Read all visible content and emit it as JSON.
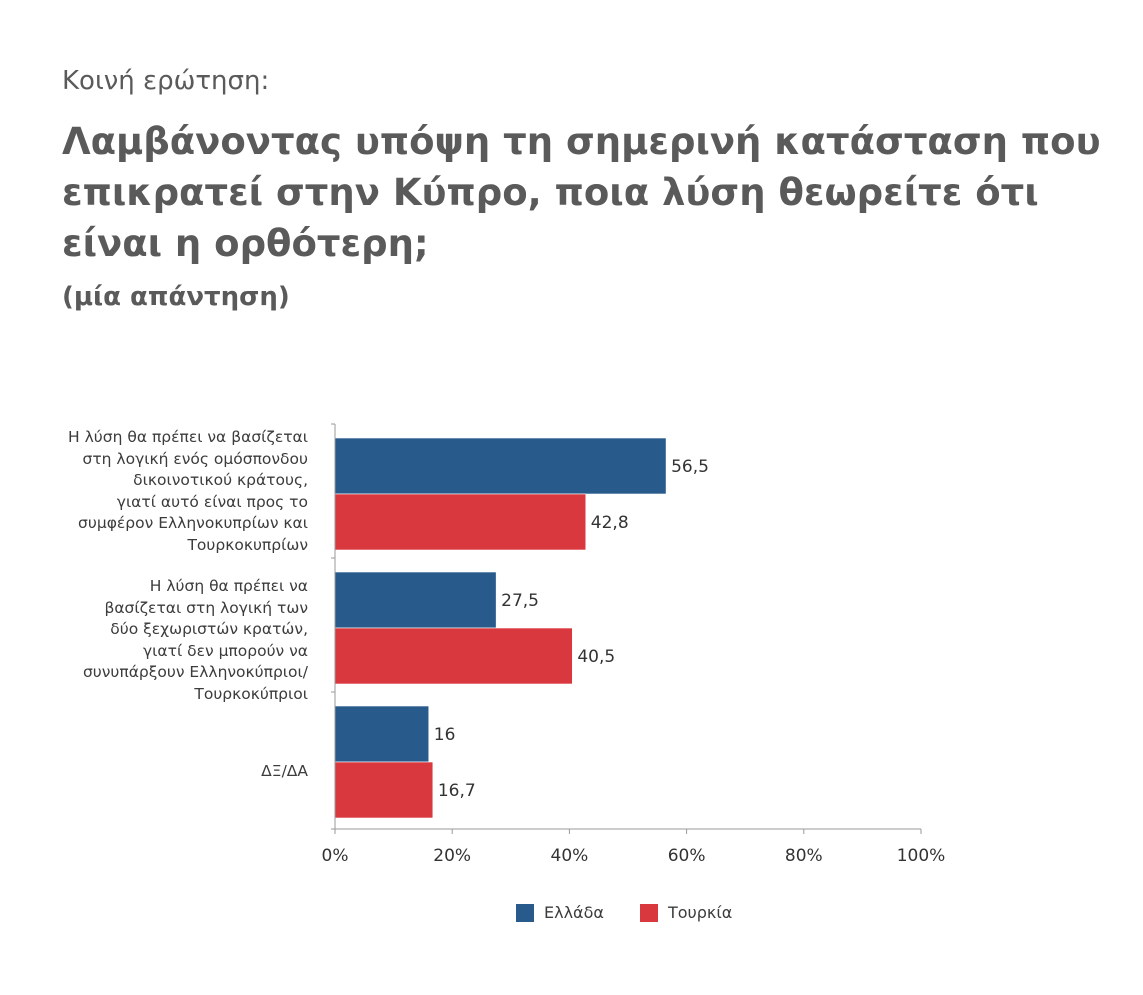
{
  "header": {
    "kicker": "Κοινή ερώτηση:",
    "question": "Λαμβάνοντας υπόψη τη σημερινή κατάσταση που επικρατεί στην Κύπρο, ποια λύση θεωρείτε ότι είναι η ορθότερη;",
    "note": "(μία απάντηση)"
  },
  "chart_data": {
    "type": "bar",
    "orientation": "horizontal",
    "categories": [
      "Η λύση θα πρέπει να βασίζεται στη λογική ενός ομόσπονδου δικοινοτικού κράτους, γιατί αυτό είναι προς το συμφέρον Ελληνοκυπρίων και Τουρκοκυπρίων",
      "Η λύση θα πρέπει να βασίζεται στη λογική των δύο ξεχωριστών κρατών, γιατί δεν μπορούν να συνυπάρξουν Ελληνοκύπριοι/ Τουρκοκύπριοι",
      "ΔΞ/ΔΑ"
    ],
    "category_lines": [
      [
        "Η λύση θα πρέπει να βασίζεται",
        "στη λογική ενός ομόσπονδου",
        "δικοινοτικού κράτους,",
        "γιατί αυτό είναι προς το",
        "συμφέρον Ελληνοκυπρίων και",
        "Τουρκοκυπρίων"
      ],
      [
        "Η λύση θα πρέπει να",
        "βασίζεται στη λογική των",
        "δύο ξεχωριστών κρατών,",
        "γιατί δεν μπορούν να",
        "συνυπάρξουν Ελληνοκύπριοι/",
        "Τουρκοκύπριοι"
      ],
      [
        "ΔΞ/ΔΑ"
      ]
    ],
    "series": [
      {
        "name": "Ελλάδα",
        "color": "#285a8c",
        "values": [
          56.5,
          27.5,
          16
        ],
        "labels": [
          "56,5",
          "27,5",
          "16"
        ]
      },
      {
        "name": "Τουρκία",
        "color": "#d9393e",
        "values": [
          42.8,
          40.5,
          16.7
        ],
        "labels": [
          "42,8",
          "40,5",
          "16,7"
        ]
      }
    ],
    "xlim": [
      0,
      100
    ],
    "x_ticks": [
      0,
      20,
      40,
      60,
      80,
      100
    ],
    "x_tick_labels": [
      "0%",
      "20%",
      "40%",
      "60%",
      "80%",
      "100%"
    ],
    "legend_position": "bottom",
    "grid": false
  },
  "legend": {
    "items": [
      {
        "label": "Ελλάδα",
        "color": "#285a8c"
      },
      {
        "label": "Τουρκία",
        "color": "#d9393e"
      }
    ]
  }
}
